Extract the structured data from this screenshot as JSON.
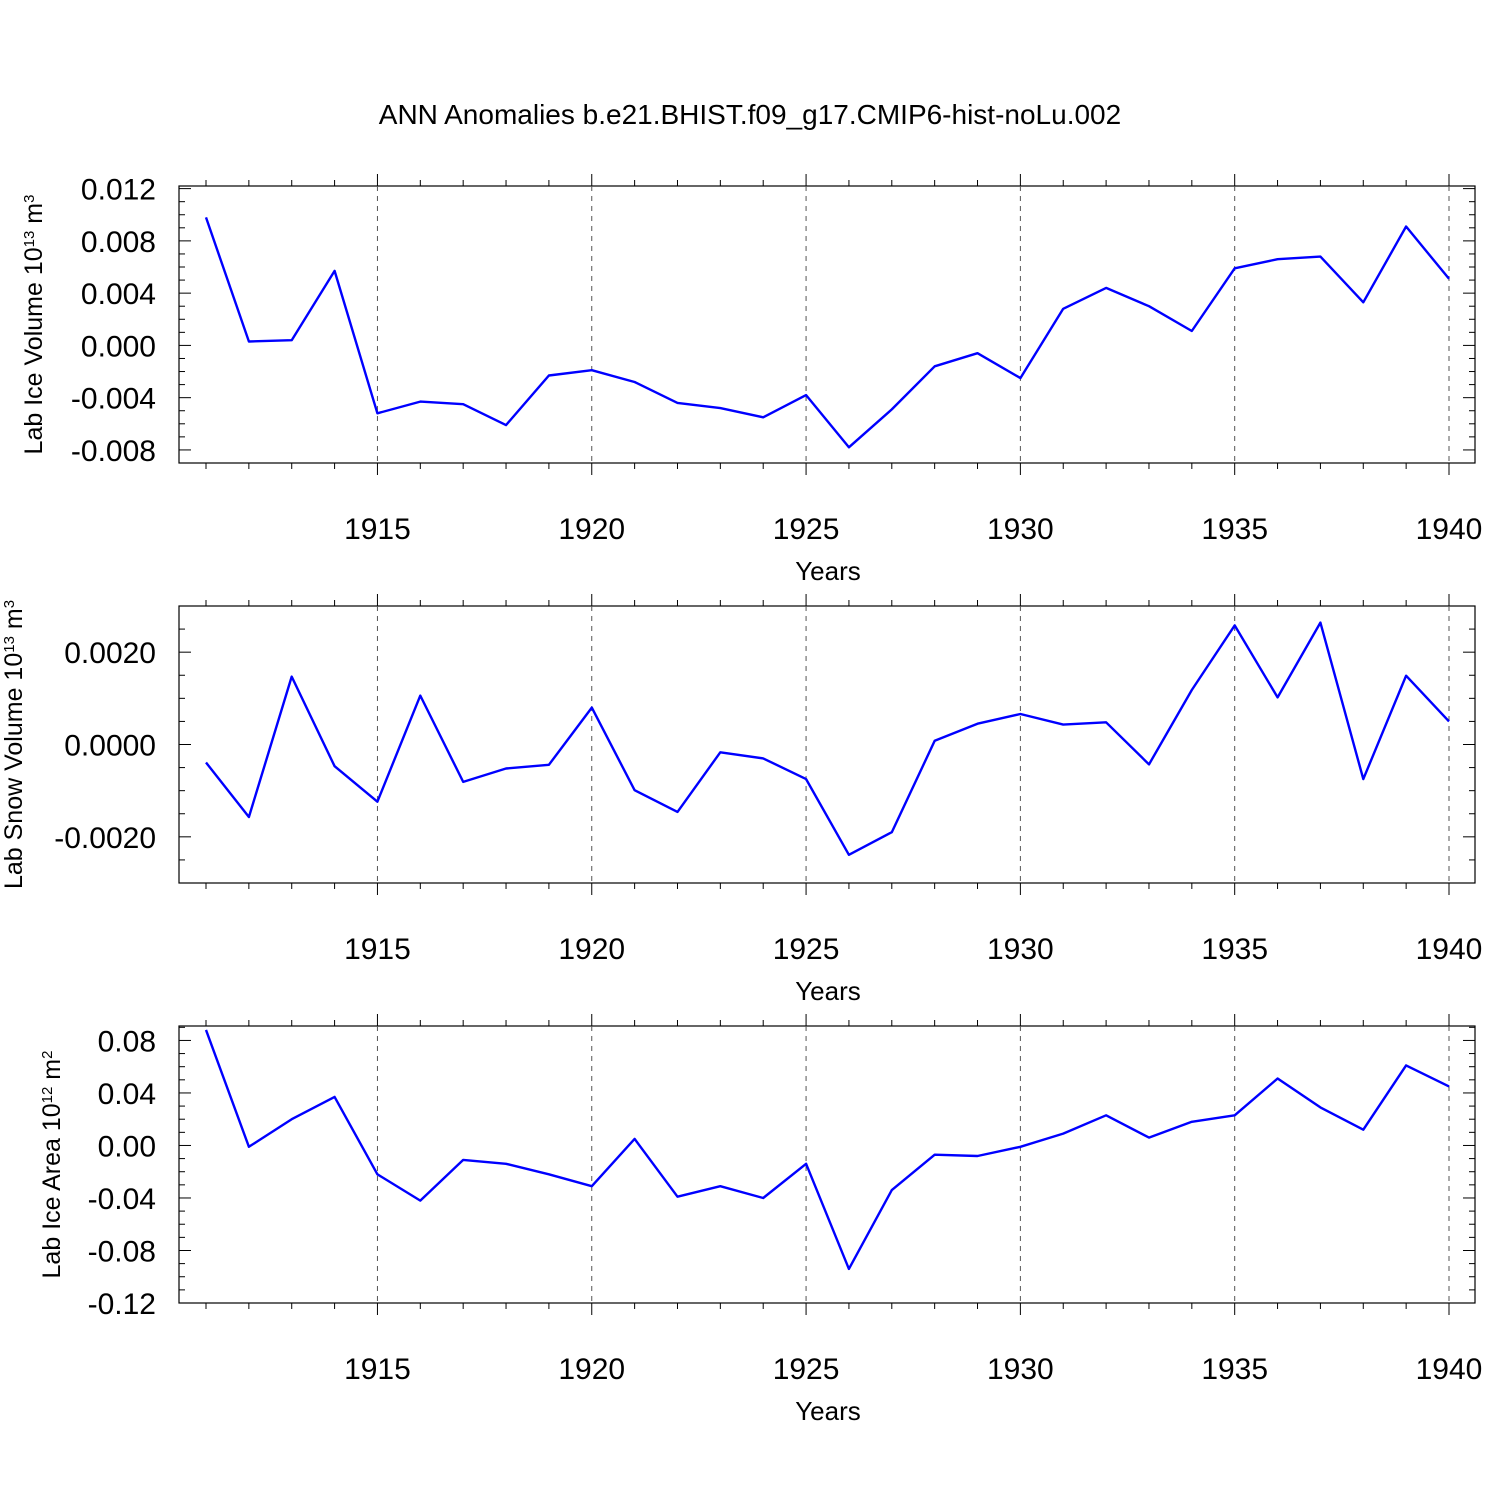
{
  "figure": {
    "title": "ANN Anomalies b.e21.BHIST.f09_g17.CMIP6-hist-noLu.002"
  },
  "colors": {
    "line": "#0000ff",
    "axis": "#000000",
    "grid": "#555555"
  },
  "chart_data": [
    {
      "type": "line",
      "title": "ANN Anomalies b.e21.BHIST.f09_g17.CMIP6-hist-noLu.002",
      "ylabel": "Lab Ice Volume 10",
      "ylabel_exp": "13",
      "ylabel_unit": " m",
      "ylabel_unit_exp": "3",
      "xlabel": "Years",
      "xlim": [
        1911,
        1940
      ],
      "ylim": [
        -0.009,
        0.0122
      ],
      "yticks": [
        0.012,
        0.008,
        0.004,
        0.0,
        -0.004,
        -0.008
      ],
      "ytick_labels": [
        "0.012",
        "0.008",
        "0.004",
        "0.000",
        "-0.004",
        "-0.008"
      ],
      "yminor_step": 0.001,
      "xticks": [
        1915,
        1920,
        1925,
        1930,
        1935,
        1940
      ],
      "xtick_labels": [
        "1915",
        "1920",
        "1925",
        "1930",
        "1935",
        "1940"
      ],
      "grid": "x-dashed",
      "series": [
        {
          "name": "Lab Ice Volume",
          "x": [
            1911,
            1912,
            1913,
            1914,
            1915,
            1916,
            1917,
            1918,
            1919,
            1920,
            1921,
            1922,
            1923,
            1924,
            1925,
            1926,
            1927,
            1928,
            1929,
            1930,
            1931,
            1932,
            1933,
            1934,
            1935,
            1936,
            1937,
            1938,
            1939,
            1940
          ],
          "values": [
            0.0098,
            0.0003,
            0.0004,
            0.0057,
            -0.0052,
            -0.0043,
            -0.0045,
            -0.0061,
            -0.0023,
            -0.0019,
            -0.0028,
            -0.0044,
            -0.0048,
            -0.0055,
            -0.0038,
            -0.0078,
            -0.0049,
            -0.0016,
            -0.0006,
            -0.0025,
            0.0028,
            0.0044,
            0.003,
            0.0011,
            0.0059,
            0.0066,
            0.0068,
            0.0033,
            0.0091,
            0.0051
          ]
        }
      ]
    },
    {
      "type": "line",
      "ylabel": "Lab Snow Volume 10",
      "ylabel_exp": "13",
      "ylabel_unit": " m",
      "ylabel_unit_exp": "3",
      "xlabel": "Years",
      "xlim": [
        1911,
        1940
      ],
      "ylim": [
        -0.003,
        0.003
      ],
      "yticks": [
        0.002,
        0.0,
        -0.002
      ],
      "ytick_labels": [
        "0.0020",
        "0.0000",
        "-0.0020"
      ],
      "yminor_step": 0.0005,
      "xticks": [
        1915,
        1920,
        1925,
        1930,
        1935,
        1940
      ],
      "xtick_labels": [
        "1915",
        "1920",
        "1925",
        "1930",
        "1935",
        "1940"
      ],
      "grid": "x-dashed",
      "series": [
        {
          "name": "Lab Snow Volume",
          "x": [
            1911,
            1912,
            1913,
            1914,
            1915,
            1916,
            1917,
            1918,
            1919,
            1920,
            1921,
            1922,
            1923,
            1924,
            1925,
            1926,
            1927,
            1928,
            1929,
            1930,
            1931,
            1932,
            1933,
            1934,
            1935,
            1936,
            1937,
            1938,
            1939,
            1940
          ],
          "values": [
            -0.00039,
            -0.00157,
            0.00147,
            -0.00047,
            -0.00124,
            0.00106,
            -0.00081,
            -0.00052,
            -0.00044,
            0.0008,
            -0.00099,
            -0.00146,
            -0.00017,
            -0.0003,
            -0.00075,
            -0.00239,
            -0.0019,
            8e-05,
            0.00045,
            0.00066,
            0.00043,
            0.00048,
            -0.00043,
            0.00118,
            0.00258,
            0.00102,
            0.00264,
            -0.00075,
            0.00149,
            0.0005
          ]
        }
      ]
    },
    {
      "type": "line",
      "ylabel": "Lab Ice Area 10",
      "ylabel_exp": "12",
      "ylabel_unit": " m",
      "ylabel_unit_exp": "2",
      "xlabel": "Years",
      "xlim": [
        1911,
        1940
      ],
      "ylim": [
        -0.12,
        0.091
      ],
      "yticks": [
        0.08,
        0.04,
        0.0,
        -0.04,
        -0.08,
        -0.12
      ],
      "ytick_labels": [
        "0.08",
        "0.04",
        "0.00",
        "-0.04",
        "-0.08",
        "-0.12"
      ],
      "yminor_step": 0.01,
      "xticks": [
        1915,
        1920,
        1925,
        1930,
        1935,
        1940
      ],
      "xtick_labels": [
        "1915",
        "1920",
        "1925",
        "1930",
        "1935",
        "1940"
      ],
      "grid": "x-dashed",
      "series": [
        {
          "name": "Lab Ice Area",
          "x": [
            1911,
            1912,
            1913,
            1914,
            1915,
            1916,
            1917,
            1918,
            1919,
            1920,
            1921,
            1922,
            1923,
            1924,
            1925,
            1926,
            1927,
            1928,
            1929,
            1930,
            1931,
            1932,
            1933,
            1934,
            1935,
            1936,
            1937,
            1938,
            1939,
            1940
          ],
          "values": [
            0.088,
            -0.001,
            0.02,
            0.037,
            -0.022,
            -0.042,
            -0.011,
            -0.014,
            -0.022,
            -0.031,
            0.005,
            -0.039,
            -0.031,
            -0.04,
            -0.014,
            -0.094,
            -0.034,
            -0.007,
            -0.008,
            -0.001,
            0.009,
            0.023,
            0.006,
            0.018,
            0.023,
            0.051,
            0.029,
            0.012,
            0.061,
            0.045
          ]
        }
      ]
    }
  ]
}
